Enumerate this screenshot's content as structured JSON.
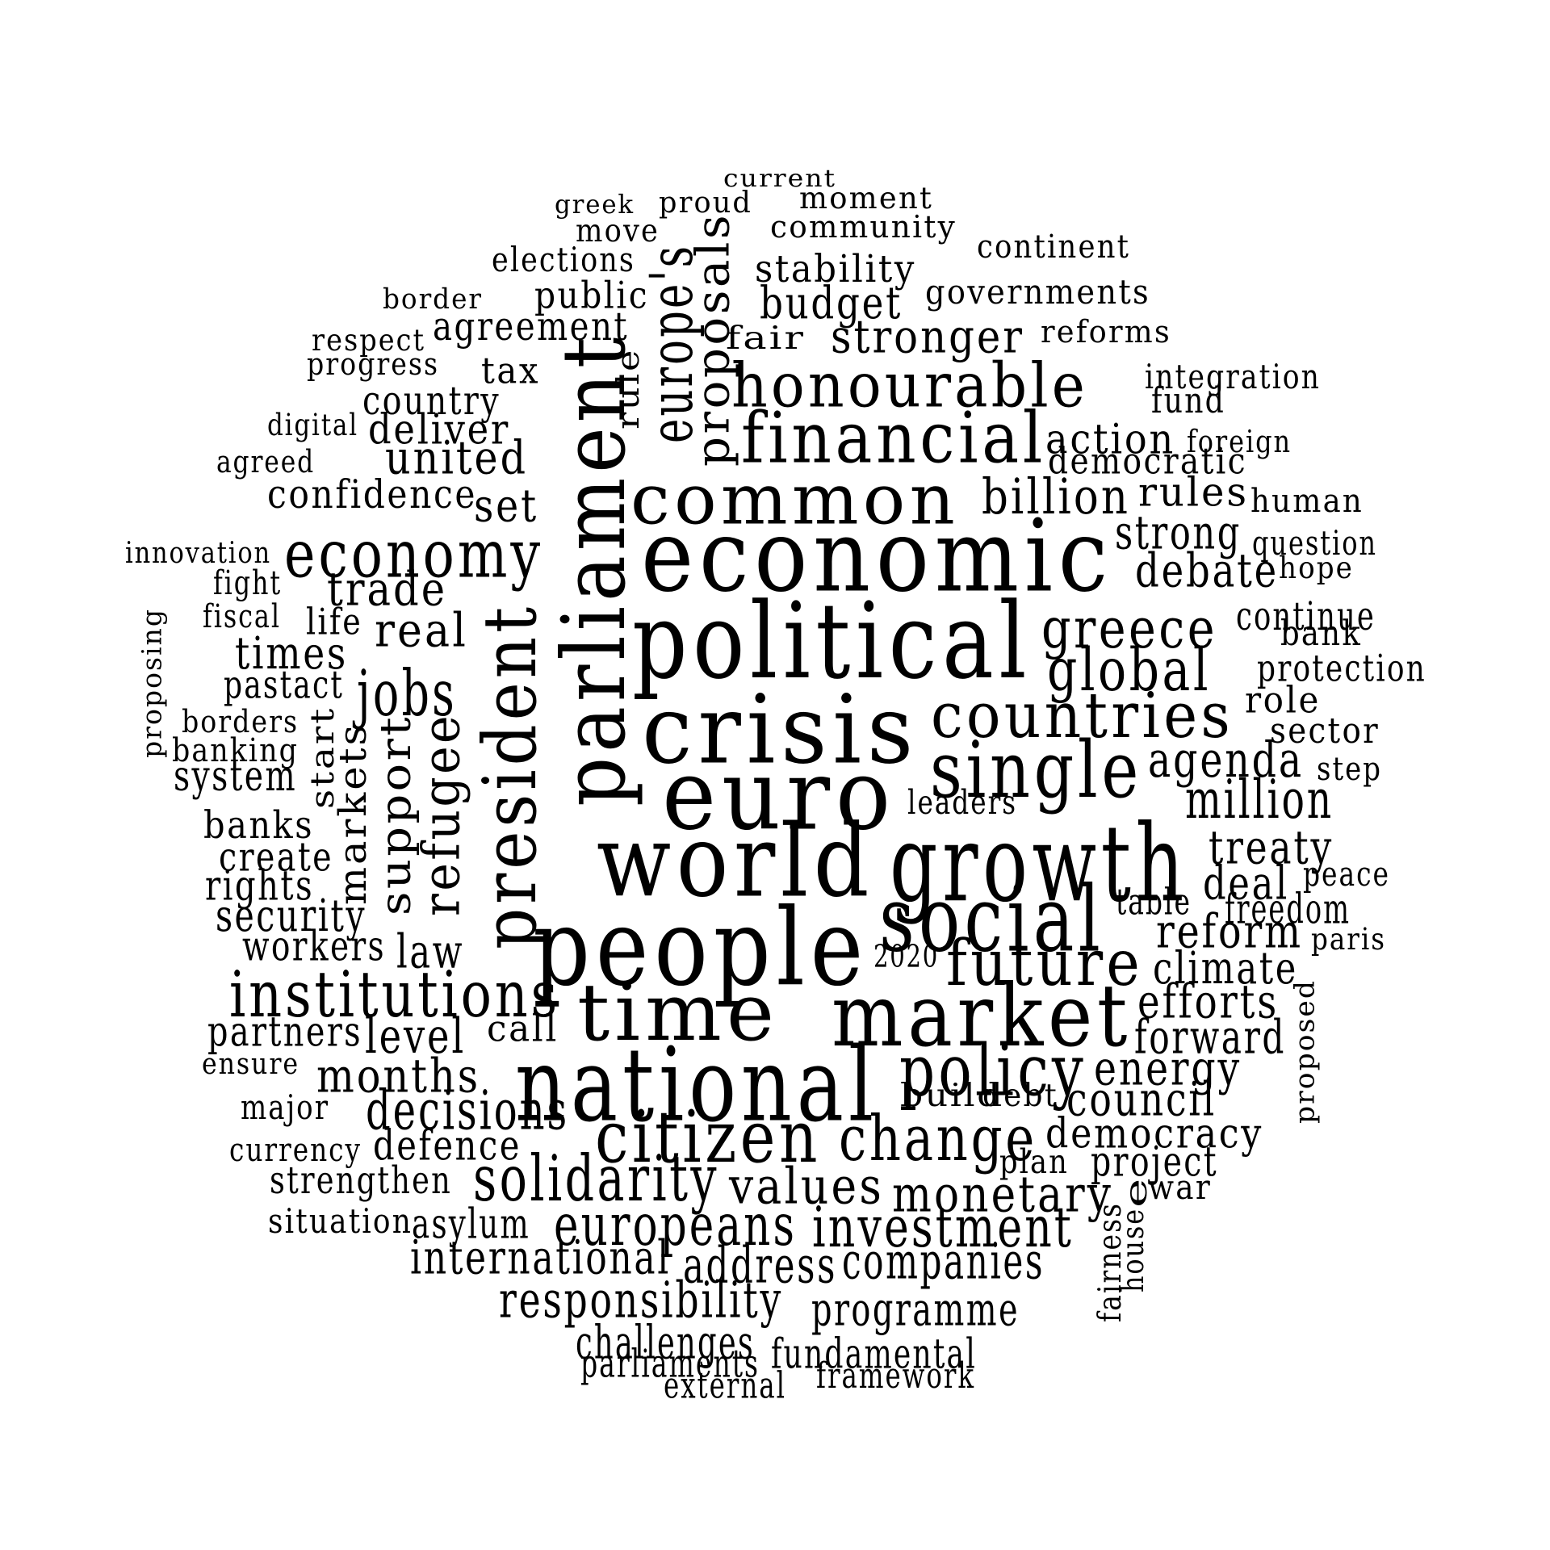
{
  "words": [
    {
      "text": "current"
    },
    {
      "text": "greek"
    },
    {
      "text": "proud"
    },
    {
      "text": "moment"
    },
    {
      "text": "move"
    },
    {
      "text": "community"
    },
    {
      "text": "elections"
    },
    {
      "text": "continent"
    },
    {
      "text": "stability"
    },
    {
      "text": "border"
    },
    {
      "text": "public"
    },
    {
      "text": "governments"
    },
    {
      "text": "budget"
    },
    {
      "text": "respect"
    },
    {
      "text": "agreement"
    },
    {
      "text": "stronger"
    },
    {
      "text": "reforms"
    },
    {
      "text": "fair"
    },
    {
      "text": "progress"
    },
    {
      "text": "tax"
    },
    {
      "text": "integration"
    },
    {
      "text": "honourable"
    },
    {
      "text": "country"
    },
    {
      "text": "fund"
    },
    {
      "text": "digital"
    },
    {
      "text": "deliver"
    },
    {
      "text": "financial"
    },
    {
      "text": "action"
    },
    {
      "text": "foreign"
    },
    {
      "text": "agreed"
    },
    {
      "text": "united"
    },
    {
      "text": "democratic"
    },
    {
      "text": "common"
    },
    {
      "text": "confidence"
    },
    {
      "text": "billion"
    },
    {
      "text": "rules"
    },
    {
      "text": "set"
    },
    {
      "text": "human"
    },
    {
      "text": "strong"
    },
    {
      "text": "innovation"
    },
    {
      "text": "economy"
    },
    {
      "text": "economic"
    },
    {
      "text": "question"
    },
    {
      "text": "fight"
    },
    {
      "text": "debate"
    },
    {
      "text": "hope"
    },
    {
      "text": "trade"
    },
    {
      "text": "fiscal"
    },
    {
      "text": "continue"
    },
    {
      "text": "life"
    },
    {
      "text": "greece"
    },
    {
      "text": "real"
    },
    {
      "text": "political"
    },
    {
      "text": "bank"
    },
    {
      "text": "times"
    },
    {
      "text": "global"
    },
    {
      "text": "protection"
    },
    {
      "text": "pastact"
    },
    {
      "text": "jobs"
    },
    {
      "text": "countries"
    },
    {
      "text": "role"
    },
    {
      "text": "crisis"
    },
    {
      "text": "borders"
    },
    {
      "text": "sector"
    },
    {
      "text": "banking"
    },
    {
      "text": "agenda"
    },
    {
      "text": "single"
    },
    {
      "text": "step"
    },
    {
      "text": "system"
    },
    {
      "text": "euro"
    },
    {
      "text": "leaders"
    },
    {
      "text": "million"
    },
    {
      "text": "banks"
    },
    {
      "text": "treaty"
    },
    {
      "text": "create"
    },
    {
      "text": "world"
    },
    {
      "text": "growth"
    },
    {
      "text": "peace"
    },
    {
      "text": "rights"
    },
    {
      "text": "deal"
    },
    {
      "text": "table"
    },
    {
      "text": "freedom"
    },
    {
      "text": "security"
    },
    {
      "text": "social"
    },
    {
      "text": "people"
    },
    {
      "text": "reform"
    },
    {
      "text": "workers"
    },
    {
      "text": "law"
    },
    {
      "text": "paris"
    },
    {
      "text": "2020"
    },
    {
      "text": "future"
    },
    {
      "text": "climate"
    },
    {
      "text": "institutions"
    },
    {
      "text": "efforts"
    },
    {
      "text": "time"
    },
    {
      "text": "market"
    },
    {
      "text": "partners"
    },
    {
      "text": "level"
    },
    {
      "text": "call"
    },
    {
      "text": "forward"
    },
    {
      "text": "ensure"
    },
    {
      "text": "national"
    },
    {
      "text": "policy"
    },
    {
      "text": "energy"
    },
    {
      "text": "months"
    },
    {
      "text": "major"
    },
    {
      "text": "build"
    },
    {
      "text": "debt"
    },
    {
      "text": "council"
    },
    {
      "text": "decisions"
    },
    {
      "text": "citizen"
    },
    {
      "text": "change"
    },
    {
      "text": "democracy"
    },
    {
      "text": "currency"
    },
    {
      "text": "defence"
    },
    {
      "text": "plan"
    },
    {
      "text": "project"
    },
    {
      "text": "strengthen"
    },
    {
      "text": "solidarity"
    },
    {
      "text": "values"
    },
    {
      "text": "monetary"
    },
    {
      "text": "war"
    },
    {
      "text": "situation"
    },
    {
      "text": "asylum"
    },
    {
      "text": "europeans"
    },
    {
      "text": "investment"
    },
    {
      "text": "international"
    },
    {
      "text": "address"
    },
    {
      "text": "companies"
    },
    {
      "text": "responsibility"
    },
    {
      "text": "programme"
    },
    {
      "text": "challenges"
    },
    {
      "text": "parliaments"
    },
    {
      "text": "fundamental"
    },
    {
      "text": "external"
    },
    {
      "text": "framework"
    },
    {
      "text": "parliament"
    },
    {
      "text": "president"
    },
    {
      "text": "europe's"
    },
    {
      "text": "proposals"
    },
    {
      "text": "rule"
    },
    {
      "text": "refugee"
    },
    {
      "text": "support"
    },
    {
      "text": "markets"
    },
    {
      "text": "start"
    },
    {
      "text": "proposing"
    },
    {
      "text": "fairness"
    },
    {
      "text": "house"
    },
    {
      "text": "e"
    },
    {
      "text": "proposed"
    }
  ]
}
